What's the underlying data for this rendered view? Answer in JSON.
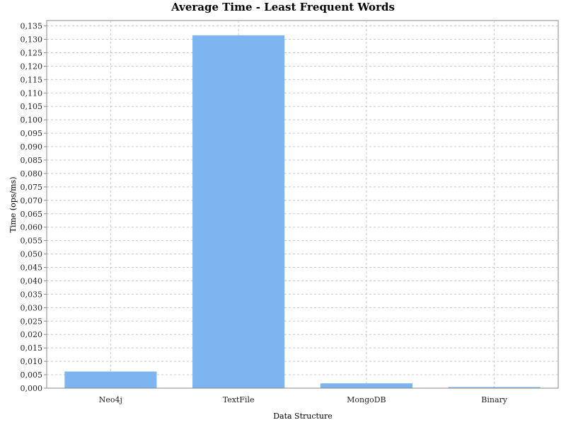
{
  "chart_data": {
    "type": "bar",
    "title": "Average Time - Least Frequent Words",
    "xlabel": "Data Structure",
    "ylabel": "Time (ops/ms)",
    "categories": [
      "Neo4j",
      "TextFile",
      "MongoDB",
      "Binary"
    ],
    "values": [
      0.0062,
      0.1315,
      0.0018,
      0.0004
    ],
    "ylim": [
      0,
      0.137
    ],
    "yticks": [
      "0,000",
      "0,005",
      "0,010",
      "0,015",
      "0,020",
      "0,025",
      "0,030",
      "0,035",
      "0,040",
      "0,045",
      "0,050",
      "0,055",
      "0,060",
      "0,065",
      "0,070",
      "0,075",
      "0,080",
      "0,085",
      "0,090",
      "0,095",
      "0,100",
      "0,105",
      "0,110",
      "0,115",
      "0,120",
      "0,125",
      "0,130",
      "0,135"
    ],
    "grid": true,
    "legend": "none",
    "bar_color": "#7cb5ef",
    "grid_color": "#c8c8c8"
  }
}
